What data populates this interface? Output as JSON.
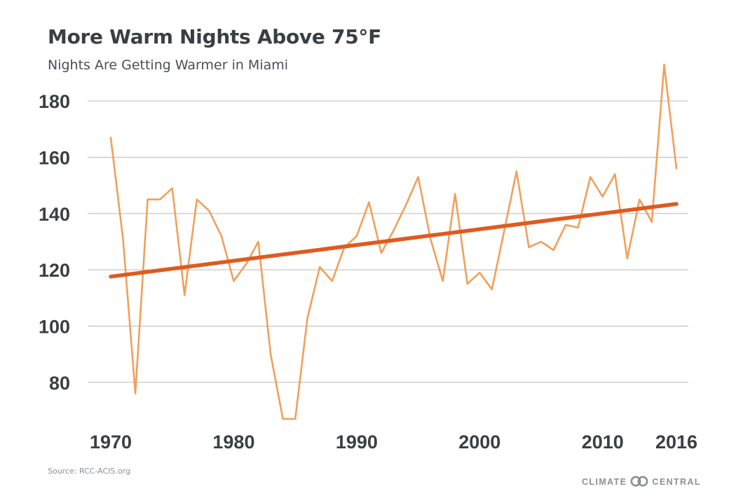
{
  "chart_data": {
    "type": "line",
    "title": "More Warm Nights Above 75°F",
    "subtitle": "Nights Are Getting Warmer in Miami",
    "xlabel": "",
    "ylabel": "",
    "xlim": [
      1970,
      2016
    ],
    "ylim": [
      65,
      190
    ],
    "x_ticks": [
      1970,
      1980,
      1990,
      2000,
      2010,
      2016
    ],
    "y_ticks": [
      80,
      100,
      120,
      140,
      160,
      180
    ],
    "grid": true,
    "series": [
      {
        "color": "#f0a05c",
        "x": [
          1970,
          1971,
          1972,
          1973,
          1974,
          1975,
          1976,
          1977,
          1978,
          1979,
          1980,
          1981,
          1982,
          1983,
          1984,
          1985,
          1986,
          1987,
          1988,
          1989,
          1990,
          1991,
          1992,
          1993,
          1994,
          1995,
          1996,
          1997,
          1998,
          1999,
          2000,
          2001,
          2002,
          2003,
          2004,
          2005,
          2006,
          2007,
          2008,
          2009,
          2010,
          2011,
          2012,
          2013,
          2014,
          2015,
          2016
        ],
        "values": [
          167,
          131,
          76,
          145,
          145,
          149,
          111,
          145,
          141,
          132,
          116,
          122,
          130,
          90,
          67,
          67,
          103,
          121,
          116,
          128,
          132,
          144,
          126,
          134,
          143,
          153,
          131,
          116,
          147,
          115,
          119,
          113,
          134,
          155,
          128,
          130,
          127,
          136,
          135,
          153,
          146,
          154,
          124,
          145,
          137,
          193,
          156
        ]
      },
      {
        "color": "#e05a1e",
        "x": [
          1970,
          2016
        ],
        "values": [
          117.6,
          143.4
        ]
      }
    ],
    "source": "Source: RCC-ACIS.org",
    "brand_left": "CLIMATE",
    "brand_right": "CENTRAL"
  }
}
